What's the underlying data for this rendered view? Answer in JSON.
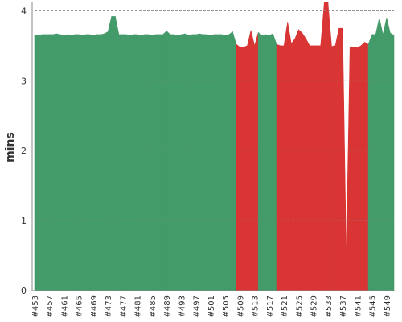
{
  "chart_data": {
    "type": "area",
    "ylabel": "mins",
    "categories": [
      "#453",
      null,
      null,
      null,
      "#457",
      null,
      null,
      null,
      "#461",
      null,
      null,
      null,
      "#465",
      null,
      null,
      null,
      "#469",
      null,
      null,
      null,
      "#473",
      null,
      null,
      null,
      "#477",
      null,
      null,
      null,
      "#481",
      null,
      null,
      null,
      "#485",
      null,
      null,
      null,
      "#489",
      null,
      null,
      null,
      "#493",
      null,
      null,
      null,
      "#497",
      null,
      null,
      null,
      "#501",
      null,
      null,
      null,
      "#505",
      null,
      null,
      null,
      "#509",
      null,
      null,
      null,
      "#513",
      null,
      null,
      null,
      "#517",
      null,
      null,
      null,
      "#521",
      null,
      null,
      null,
      "#525",
      null,
      null,
      null,
      "#529",
      null,
      null,
      null,
      "#533",
      null,
      null,
      null,
      "#537",
      null,
      null,
      null,
      "#541",
      null,
      null,
      null,
      "#545",
      null,
      null,
      null,
      "#549",
      null,
      null
    ],
    "values": [
      3.66,
      3.65,
      3.66,
      3.66,
      3.66,
      3.66,
      3.67,
      3.66,
      3.65,
      3.66,
      3.65,
      3.66,
      3.66,
      3.65,
      3.66,
      3.66,
      3.65,
      3.66,
      3.66,
      3.67,
      3.7,
      3.92,
      3.92,
      3.66,
      3.66,
      3.66,
      3.65,
      3.66,
      3.66,
      3.65,
      3.66,
      3.66,
      3.65,
      3.66,
      3.66,
      3.66,
      3.71,
      3.66,
      3.66,
      3.65,
      3.66,
      3.67,
      3.65,
      3.66,
      3.66,
      3.67,
      3.66,
      3.66,
      3.65,
      3.66,
      3.66,
      3.66,
      3.65,
      3.66,
      3.7,
      3.52,
      3.48,
      3.48,
      3.5,
      3.72,
      3.5,
      3.69,
      3.65,
      3.66,
      3.65,
      3.67,
      3.52,
      3.5,
      3.5,
      3.84,
      3.53,
      3.6,
      3.73,
      3.68,
      3.6,
      3.5,
      3.5,
      3.5,
      3.5,
      4.12,
      4.12,
      3.49,
      3.5,
      3.75,
      3.75,
      0.5,
      3.48,
      3.48,
      3.47,
      3.5,
      3.55,
      3.52,
      3.66,
      3.66,
      3.9,
      3.66,
      3.9,
      3.68,
      3.65
    ],
    "status": [
      "success",
      "success",
      "success",
      "success",
      "success",
      "success",
      "success",
      "success",
      "success",
      "success",
      "success",
      "success",
      "success",
      "success",
      "success",
      "success",
      "success",
      "success",
      "success",
      "success",
      "success",
      "success",
      "success",
      "success",
      "success",
      "success",
      "success",
      "success",
      "success",
      "success",
      "success",
      "success",
      "success",
      "success",
      "success",
      "success",
      "success",
      "success",
      "success",
      "success",
      "success",
      "success",
      "success",
      "success",
      "success",
      "success",
      "success",
      "success",
      "success",
      "success",
      "success",
      "success",
      "success",
      "success",
      "success",
      "failure",
      "failure",
      "failure",
      "failure",
      "failure",
      "failure",
      "success",
      "success",
      "success",
      "success",
      "success",
      "failure",
      "failure",
      "failure",
      "failure",
      "failure",
      "failure",
      "failure",
      "failure",
      "failure",
      "failure",
      "failure",
      "failure",
      "failure",
      "failure",
      "failure",
      "failure",
      "failure",
      "failure",
      "failure",
      "failure",
      "failure",
      "failure",
      "failure",
      "failure",
      "failure",
      "success",
      "success",
      "success",
      "success",
      "success",
      "success",
      "success",
      "success"
    ],
    "colors": {
      "success": "#449b6a",
      "failure": "#d93535"
    },
    "ylim": [
      0,
      4.12
    ],
    "yticks": [
      0,
      1,
      2,
      3,
      4
    ],
    "grid": true
  }
}
